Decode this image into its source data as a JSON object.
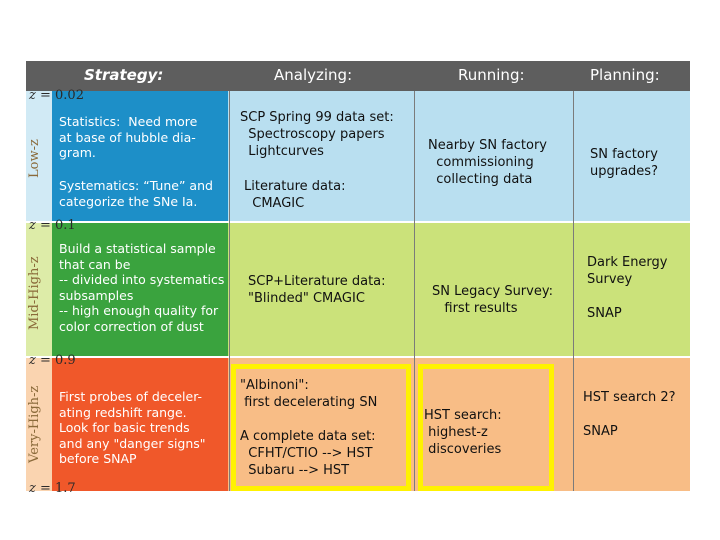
{
  "header": {
    "strategy": "Strategy:",
    "analyzing": "Analyzing:",
    "running": "Running:",
    "planning": "Planning:"
  },
  "z_labels": {
    "z1": "= 0.02",
    "z2": "= 0.1",
    "z3": "= 0.9",
    "z4": "= 1.7",
    "z_symbol": "z"
  },
  "rows": {
    "low": {
      "side_label": "Low-z",
      "strategy_1": "Statistics:  Need more\nat base of hubble dia-\ngram.",
      "strategy_2": "Systematics: “Tune” and\ncategorize the SNe Ia.",
      "analyzing_1": "SCP Spring 99 data set:\n  Spectroscopy papers\n  Lightcurves",
      "analyzing_2": "Literature data:\n  CMAGIC",
      "running": "Nearby SN factory\n  commissioning\n  collecting data",
      "planning": "SN factory\nupgrades?"
    },
    "mid": {
      "side_label": "Mid-High-z",
      "strategy": "Build a statistical sample\nthat can be\n-- divided into systematics\nsubsamples\n-- high enough quality for\ncolor correction of dust",
      "analyzing": "SCP+Literature data:\n\"Blinded\" CMAGIC",
      "running": "SN Legacy Survey:\n   first results",
      "planning_1": "Dark Energy\nSurvey",
      "planning_2": "SNAP"
    },
    "high": {
      "side_label": "Very-High-z",
      "strategy": "First probes of deceler-\nating redshift range.\nLook for basic trends\nand any \"danger signs\"\nbefore SNAP",
      "analyzing_1": "\"Albinoni\":\n first decelerating SN",
      "analyzing_2": "A complete data set:\n  CFHT/CTIO --> HST\n  Subaru --> HST",
      "running": "HST search:\n highest-z\n discoveries",
      "planning_1": "HST search 2?",
      "planning_2": "SNAP"
    }
  },
  "colors": {
    "header_bg": "#5e5e5e",
    "low_bg": "#b9dff0",
    "low_strategy_bg": "#1d8fc8",
    "mid_bg": "#cbe27a",
    "mid_strategy_bg": "#3aa33e",
    "high_bg": "#f8bd86",
    "high_strategy_bg": "#f0582a",
    "highlight": "#fff200"
  }
}
